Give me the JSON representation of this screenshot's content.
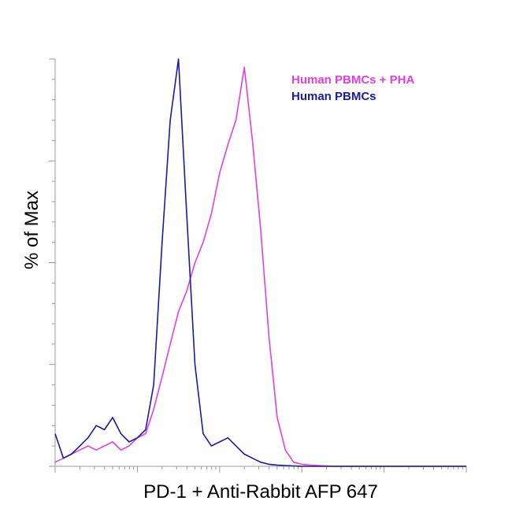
{
  "chart_data": {
    "type": "line",
    "title": "",
    "xlabel": "PD-1 + Anti-Rabbit AFP 647",
    "ylabel": "% of Max",
    "x_scale": "log",
    "xlim": [
      0.1,
      10000
    ],
    "ylim": [
      0,
      100
    ],
    "grid": false,
    "legend_position": "top-right",
    "series": [
      {
        "name": "Human PBMCs + PHA",
        "color": "#e040e0",
        "x": [
          0.1,
          0.126,
          0.158,
          0.2,
          0.251,
          0.316,
          0.398,
          0.5,
          0.631,
          0.794,
          1.0,
          1.26,
          1.58,
          2.0,
          2.51,
          3.16,
          3.98,
          5.01,
          6.31,
          7.94,
          10.0,
          12.6,
          15.8,
          20.0,
          25.1,
          31.6,
          39.8,
          50.1,
          63.1,
          79.4,
          100,
          126,
          158,
          200,
          251,
          316,
          398,
          501,
          631,
          794,
          1000,
          1580,
          2510,
          3980,
          6310,
          10000
        ],
        "y": [
          1,
          2,
          3,
          4,
          5,
          4,
          5,
          6,
          4,
          5,
          7,
          8,
          14,
          22,
          30,
          38,
          43,
          50,
          55,
          62,
          72,
          79,
          85,
          98,
          80,
          58,
          32,
          12,
          4,
          1,
          0.5,
          0.3,
          0.2,
          0.1,
          0,
          0,
          0,
          0,
          0,
          0,
          0,
          0,
          0,
          0,
          0,
          0
        ]
      },
      {
        "name": "Human PBMCs",
        "color": "#1a1aa6",
        "x": [
          0.1,
          0.126,
          0.158,
          0.2,
          0.251,
          0.316,
          0.398,
          0.5,
          0.631,
          0.794,
          1.0,
          1.26,
          1.58,
          2.0,
          2.51,
          3.16,
          3.98,
          5.01,
          6.31,
          7.94,
          10.0,
          12.6,
          15.8,
          20.0,
          25.1,
          31.6,
          39.8,
          50.1,
          63.1,
          79.4,
          100,
          126,
          158,
          200,
          251,
          316,
          398,
          501,
          631,
          794,
          1000,
          1580,
          2510,
          3980,
          6310,
          10000
        ],
        "y": [
          8,
          2,
          3,
          5,
          7,
          10,
          9,
          12,
          8,
          6,
          7,
          9,
          20,
          55,
          85,
          100,
          62,
          25,
          8,
          5,
          6,
          7,
          5,
          3,
          2,
          1,
          0.5,
          0.3,
          0.2,
          0.1,
          0,
          0,
          0,
          0,
          0,
          0,
          0,
          0,
          0,
          0,
          0,
          0,
          0,
          0,
          0,
          0
        ]
      }
    ]
  }
}
